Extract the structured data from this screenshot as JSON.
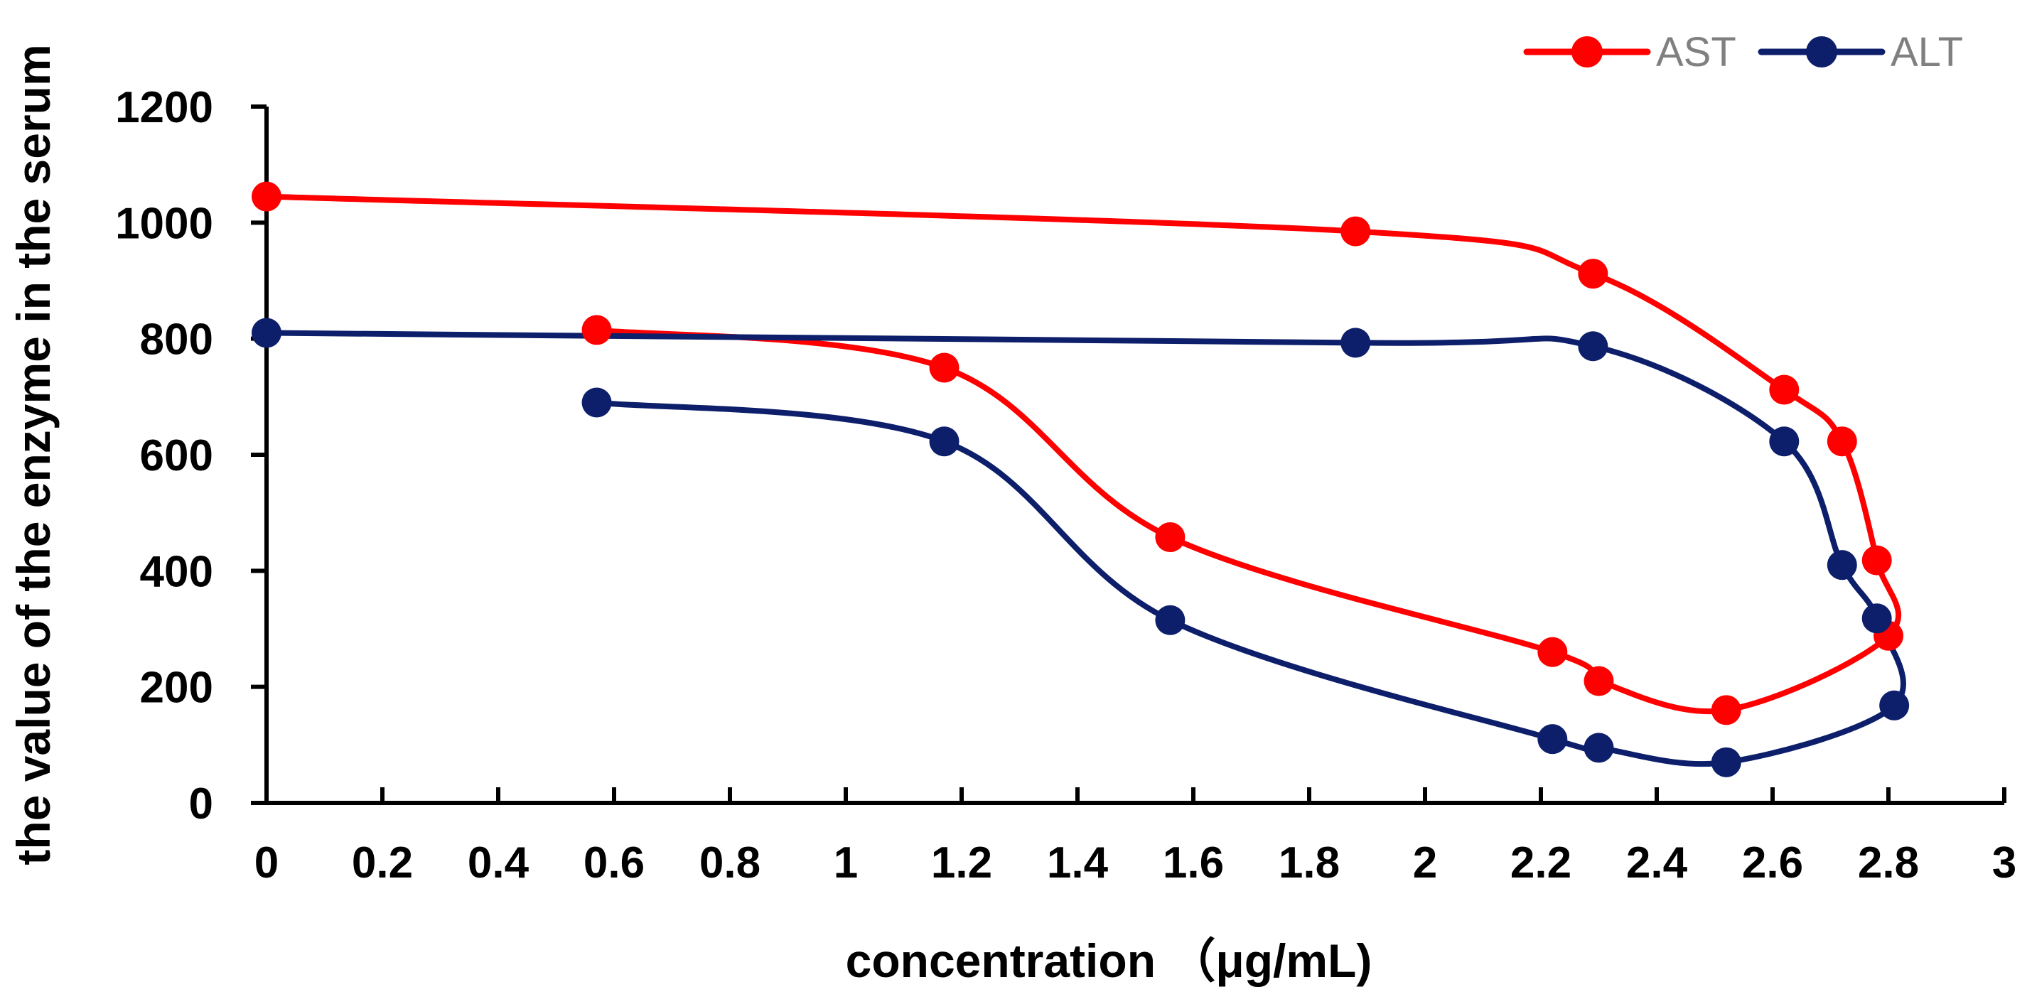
{
  "chart_data": {
    "type": "line",
    "title": "",
    "xlabel": "concentration （μg/mL)",
    "ylabel": "the value of the enzyme in the serum",
    "xlim": [
      0,
      3
    ],
    "ylim": [
      0,
      1200
    ],
    "x_ticks": [
      "0",
      "0.2",
      "0.4",
      "0.6",
      "0.8",
      "1",
      "1.2",
      "1.4",
      "1.6",
      "1.8",
      "2",
      "2.2",
      "2.4",
      "2.6",
      "2.8",
      "3"
    ],
    "y_ticks": [
      "0",
      "200",
      "400",
      "600",
      "800",
      "1000",
      "1200"
    ],
    "grid": false,
    "legend_position": "top-right",
    "series": [
      {
        "name": "AST",
        "color": "#ff0000",
        "points": [
          [
            0,
            1045
          ],
          [
            1.88,
            985
          ],
          [
            2.29,
            912
          ],
          [
            2.62,
            712
          ],
          [
            2.72,
            623
          ],
          [
            2.78,
            418
          ],
          [
            2.8,
            288
          ],
          [
            2.52,
            160
          ],
          [
            2.3,
            210
          ],
          [
            2.22,
            260
          ],
          [
            1.56,
            458
          ],
          [
            1.17,
            750
          ],
          [
            0.57,
            815
          ]
        ]
      },
      {
        "name": "ALT",
        "color": "#0d1f6b",
        "points": [
          [
            0,
            810
          ],
          [
            1.88,
            793
          ],
          [
            2.29,
            787
          ],
          [
            2.62,
            623
          ],
          [
            2.72,
            410
          ],
          [
            2.78,
            318
          ],
          [
            2.81,
            168
          ],
          [
            2.52,
            70
          ],
          [
            2.3,
            95
          ],
          [
            2.22,
            110
          ],
          [
            1.56,
            315
          ],
          [
            1.17,
            623
          ],
          [
            0.57,
            690
          ]
        ]
      }
    ]
  }
}
